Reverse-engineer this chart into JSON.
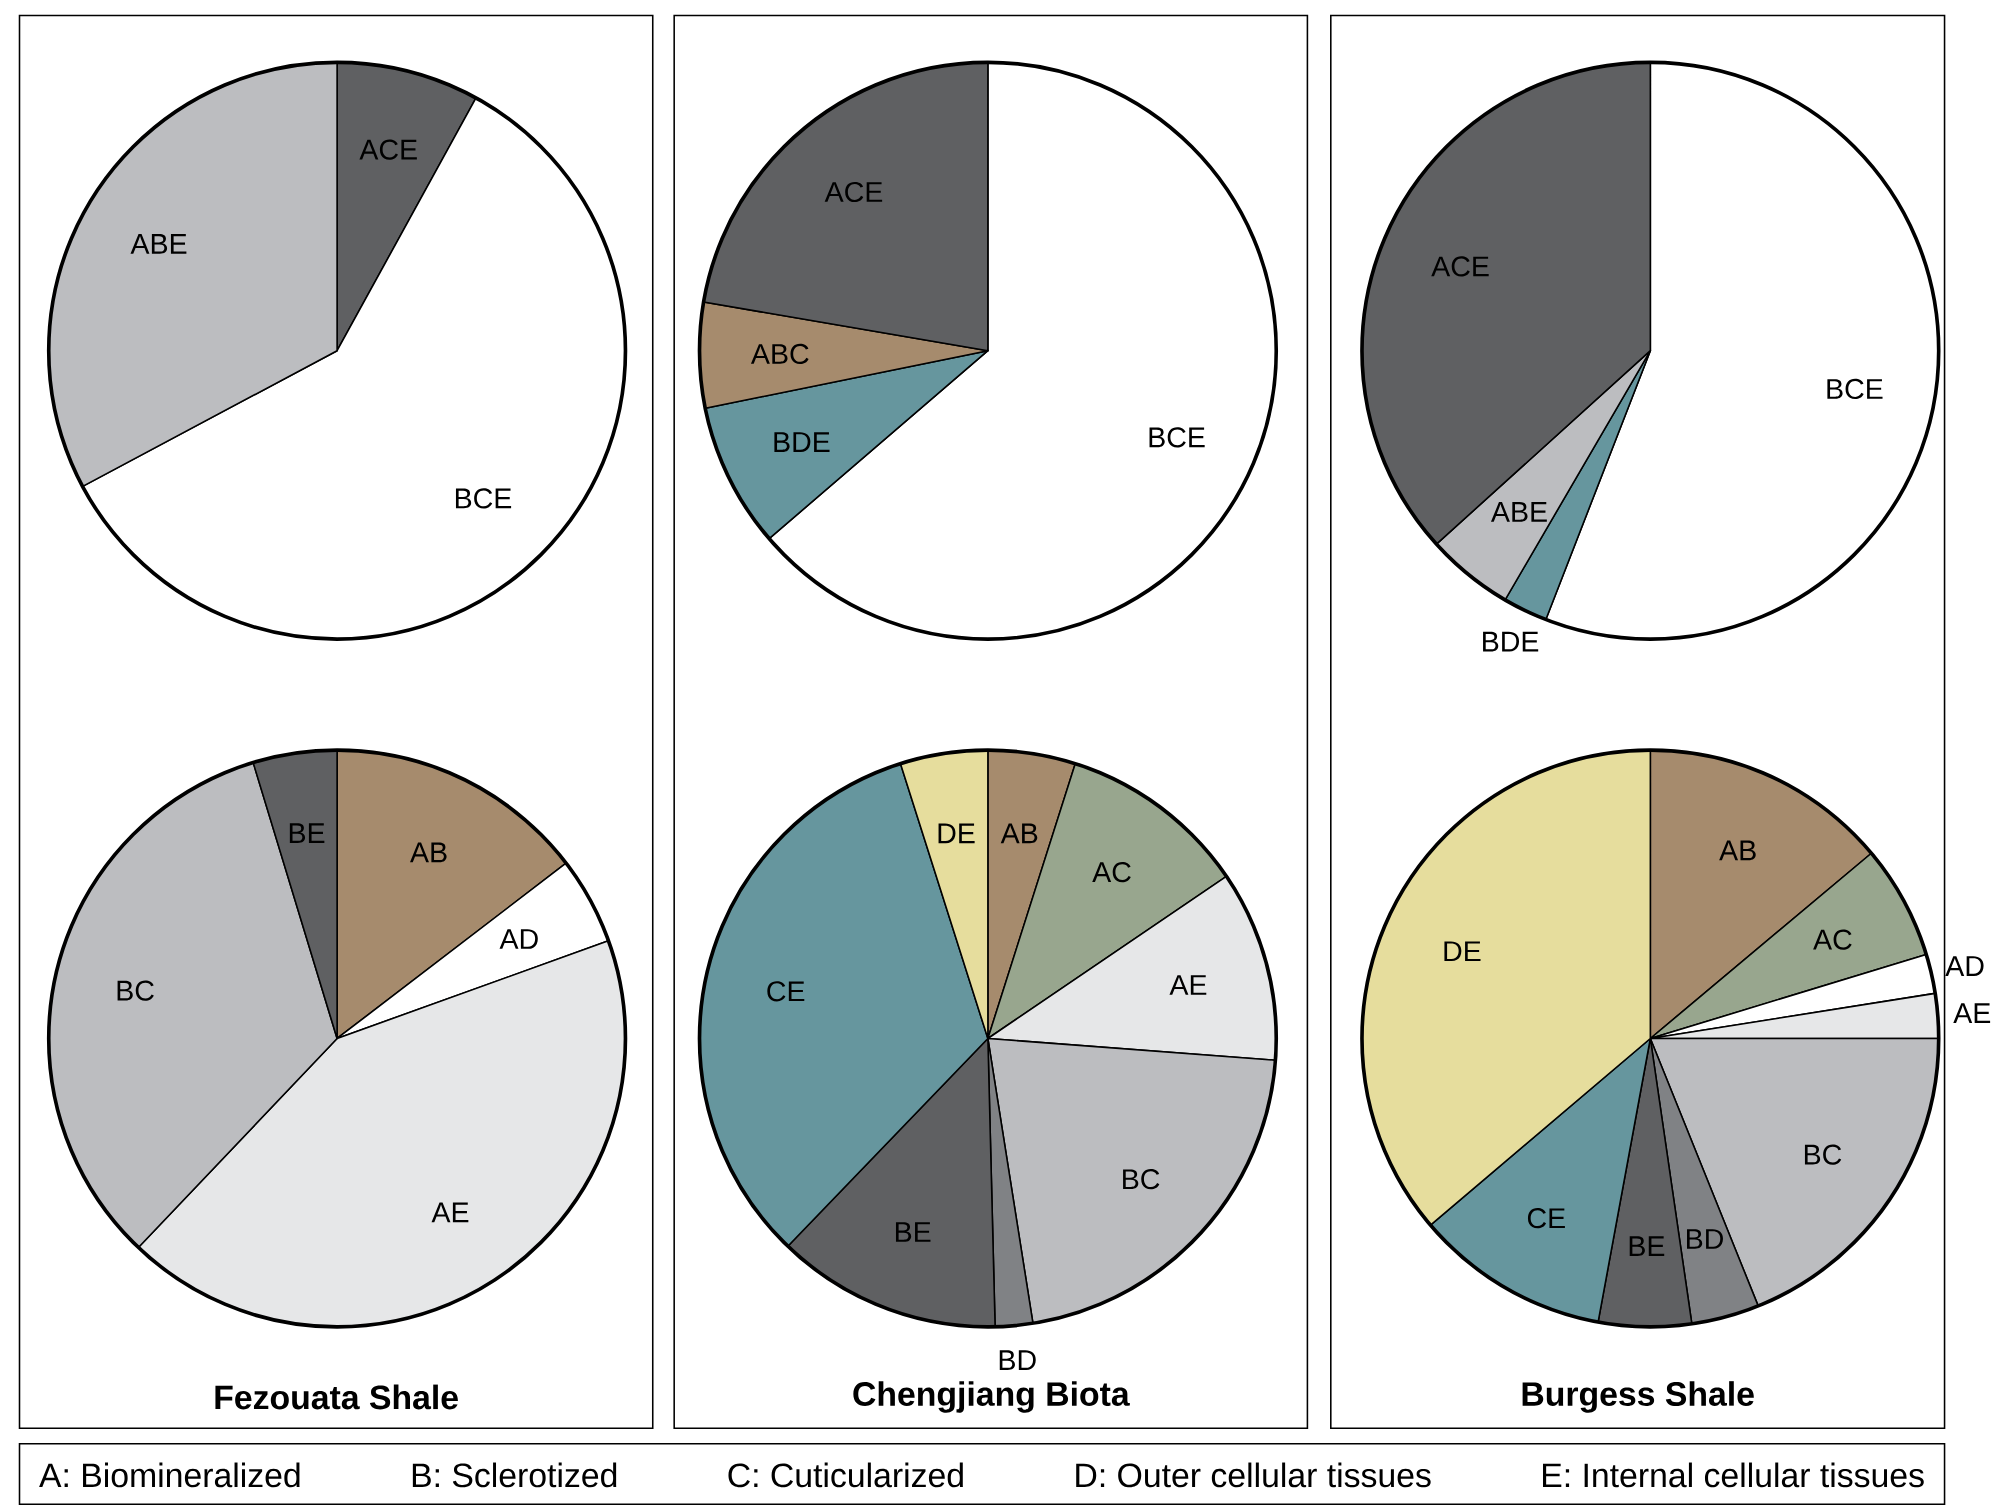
{
  "chart_data": [
    {
      "type": "pie",
      "categories": [
        "ACE",
        "BCE",
        "ABE"
      ],
      "values": [
        8,
        59.2,
        32.8
      ],
      "colors": [
        "#5f6062",
        "#ffffff",
        "#bcbdc0"
      ]
    },
    {
      "type": "pie",
      "title": "Fezouata Shale",
      "categories": [
        "AB",
        "AD",
        "AE",
        "BC",
        "BE"
      ],
      "values": [
        14.6,
        4.9,
        42.6,
        33.2,
        4.7
      ],
      "colors": [
        "#a68b6d",
        "#ffffff",
        "#e6e7e8",
        "#bcbdc0",
        "#5f6062"
      ]
    },
    {
      "type": "pie",
      "categories": [
        "BCE",
        "BDE",
        "ABC",
        "ACE"
      ],
      "values": [
        63.7,
        8.1,
        5.9,
        22.3
      ],
      "colors": [
        "#ffffff",
        "#66969e",
        "#a68b6d",
        "#5f6062"
      ]
    },
    {
      "type": "pie",
      "title": "Chengjiang Biota",
      "categories": [
        "AB",
        "AC",
        "AE",
        "BC",
        "BD",
        "BE",
        "CE",
        "DE"
      ],
      "values": [
        4.9,
        10.6,
        10.7,
        21.3,
        2.1,
        12.6,
        32.9,
        4.9
      ],
      "colors": [
        "#a68b6d",
        "#98a68e",
        "#e6e7e8",
        "#bcbdc0",
        "#808285",
        "#5f6062",
        "#66969e",
        "#e6dd9d"
      ]
    },
    {
      "type": "pie",
      "categories": [
        "BCE",
        "BDE",
        "ABE",
        "ACE"
      ],
      "values": [
        55.9,
        2.5,
        4.9,
        36.7
      ],
      "colors": [
        "#ffffff",
        "#66969e",
        "#bcbdc0",
        "#5f6062"
      ]
    },
    {
      "type": "pie",
      "title": "Burgess Shale",
      "categories": [
        "AB",
        "AC",
        "AD",
        "AE",
        "BC",
        "BD",
        "BE",
        "CE",
        "DE"
      ],
      "values": [
        13.9,
        6.4,
        2.2,
        2.5,
        18.9,
        3.8,
        5.2,
        10.9,
        36.2
      ],
      "colors": [
        "#a68b6d",
        "#98a68e",
        "#ffffff",
        "#e6e7e8",
        "#bcbdc0",
        "#808285",
        "#5f6062",
        "#66969e",
        "#e6dd9d"
      ]
    },
    {
      "type": "other",
      "annotations": [
        "A: Biomineralized",
        "B: Sclerotized",
        "C: Cuticularized",
        "D: Outer cellular tissues",
        "E: Internal cellular tissues"
      ]
    }
  ]
}
